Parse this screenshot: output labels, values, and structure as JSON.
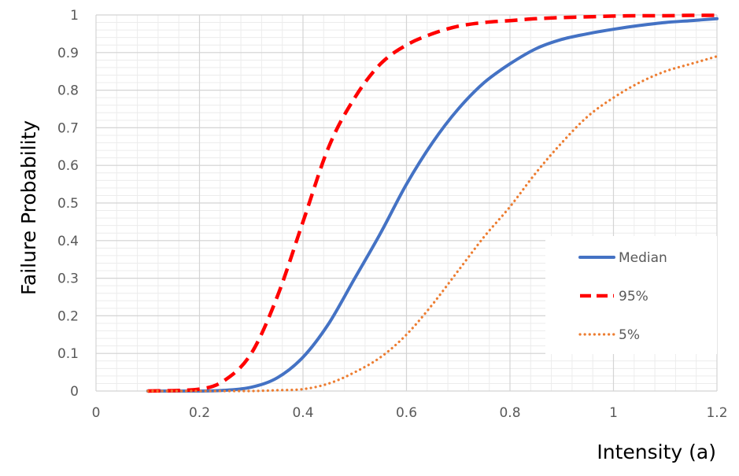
{
  "chart_data": {
    "type": "line",
    "xlabel": "Intensity (a)",
    "ylabel": "Failure Probability",
    "xlim": [
      0,
      1.2
    ],
    "ylim": [
      0,
      1
    ],
    "xticks": [
      "0",
      "0.2",
      "0.4",
      "0.6",
      "0.8",
      "1",
      "1.2"
    ],
    "yticks": [
      "0",
      "0.1",
      "0.2",
      "0.3",
      "0.4",
      "0.5",
      "0.6",
      "0.7",
      "0.8",
      "0.9",
      "1"
    ],
    "grid": true,
    "legend_position": "right",
    "x": [
      0.1,
      0.2,
      0.25,
      0.3,
      0.35,
      0.4,
      0.45,
      0.5,
      0.55,
      0.6,
      0.65,
      0.7,
      0.75,
      0.8,
      0.85,
      0.9,
      0.95,
      1.0,
      1.05,
      1.1,
      1.15,
      1.2
    ],
    "series": [
      {
        "name": "Median",
        "color": "#4472C4",
        "style": "solid",
        "values": [
          0.0,
          0.0,
          0.002,
          0.01,
          0.035,
          0.09,
          0.18,
          0.3,
          0.42,
          0.55,
          0.66,
          0.75,
          0.82,
          0.87,
          0.91,
          0.935,
          0.95,
          0.962,
          0.972,
          0.98,
          0.985,
          0.99
        ]
      },
      {
        "name": "95%",
        "color": "#FF0000",
        "style": "dashed",
        "values": [
          0.0,
          0.005,
          0.03,
          0.1,
          0.25,
          0.45,
          0.65,
          0.78,
          0.87,
          0.92,
          0.95,
          0.97,
          0.98,
          0.985,
          0.99,
          0.993,
          0.995,
          0.997,
          0.998,
          0.998,
          0.999,
          0.999
        ]
      },
      {
        "name": "5%",
        "color": "#ED7D31",
        "style": "dotted",
        "values": [
          0.0,
          0.0,
          0.0,
          0.0,
          0.002,
          0.005,
          0.02,
          0.05,
          0.09,
          0.15,
          0.23,
          0.32,
          0.41,
          0.49,
          0.58,
          0.66,
          0.73,
          0.78,
          0.82,
          0.85,
          0.87,
          0.89
        ]
      }
    ]
  }
}
